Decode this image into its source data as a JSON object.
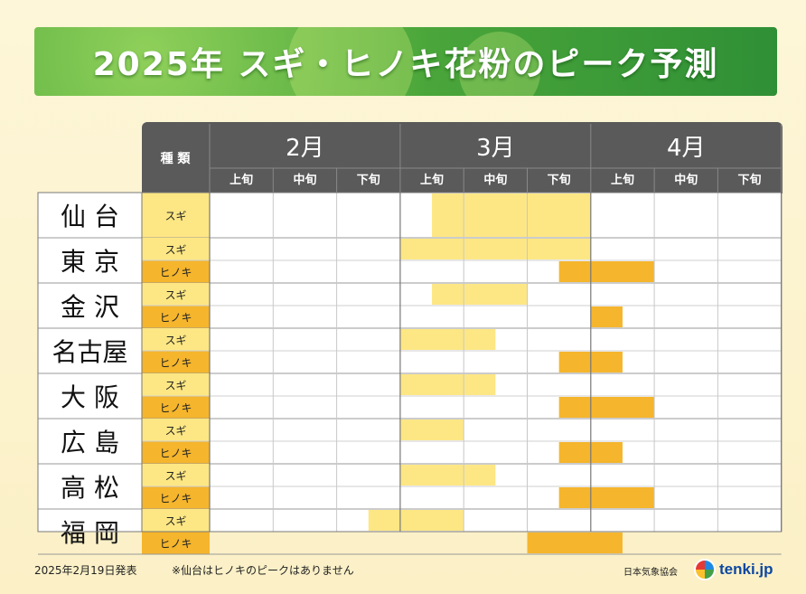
{
  "title": "2025年 スギ・ヒノキ花粉のピーク予測",
  "type_header": "種 類",
  "months": [
    "2月",
    "3月",
    "4月"
  ],
  "periods": [
    "上旬",
    "中旬",
    "下旬"
  ],
  "footer": {
    "date": "2025年2月19日発表",
    "note": "※仙台はヒノキのピークはありません",
    "org": "日本気象協会",
    "logo": "tenki.jp"
  },
  "colors": {
    "sugi_bar": "#fde784",
    "hinoki_bar": "#f5b52c",
    "sugi_label_bg": "#fde784",
    "hinoki_label_bg": "#f5b52c",
    "header_bg": "#5a5a5a"
  },
  "chart_data": {
    "type": "table",
    "title": "2025年 スギ・ヒノキ花粉のピーク予測",
    "columns": [
      "2月上旬",
      "2月中旬",
      "2月下旬",
      "3月上旬",
      "3月中旬",
      "3月下旬",
      "4月上旬",
      "4月中旬",
      "4月下旬"
    ],
    "cities": [
      {
        "name": "仙 台",
        "rows": [
          {
            "type": "スギ",
            "kind": "sugi",
            "start": 3.5,
            "end": 6
          }
        ]
      },
      {
        "name": "東 京",
        "rows": [
          {
            "type": "スギ",
            "kind": "sugi",
            "start": 3,
            "end": 6
          },
          {
            "type": "ヒノキ",
            "kind": "hinoki",
            "start": 5.5,
            "end": 7
          }
        ]
      },
      {
        "name": "金 沢",
        "rows": [
          {
            "type": "スギ",
            "kind": "sugi",
            "start": 3.5,
            "end": 5
          },
          {
            "type": "ヒノキ",
            "kind": "hinoki",
            "start": 6,
            "end": 6.5
          }
        ]
      },
      {
        "name": "名古屋",
        "rows": [
          {
            "type": "スギ",
            "kind": "sugi",
            "start": 3,
            "end": 4.5
          },
          {
            "type": "ヒノキ",
            "kind": "hinoki",
            "start": 5.5,
            "end": 6.5
          }
        ]
      },
      {
        "name": "大 阪",
        "rows": [
          {
            "type": "スギ",
            "kind": "sugi",
            "start": 3,
            "end": 4.5
          },
          {
            "type": "ヒノキ",
            "kind": "hinoki",
            "start": 5.5,
            "end": 7
          }
        ]
      },
      {
        "name": "広 島",
        "rows": [
          {
            "type": "スギ",
            "kind": "sugi",
            "start": 3,
            "end": 4
          },
          {
            "type": "ヒノキ",
            "kind": "hinoki",
            "start": 5.5,
            "end": 6.5
          }
        ]
      },
      {
        "name": "高 松",
        "rows": [
          {
            "type": "スギ",
            "kind": "sugi",
            "start": 3,
            "end": 4.5
          },
          {
            "type": "ヒノキ",
            "kind": "hinoki",
            "start": 5.5,
            "end": 7
          }
        ]
      },
      {
        "name": "福 岡",
        "rows": [
          {
            "type": "スギ",
            "kind": "sugi",
            "start": 2.5,
            "end": 4
          },
          {
            "type": "ヒノキ",
            "kind": "hinoki",
            "start": 5,
            "end": 6.5
          }
        ]
      }
    ]
  }
}
